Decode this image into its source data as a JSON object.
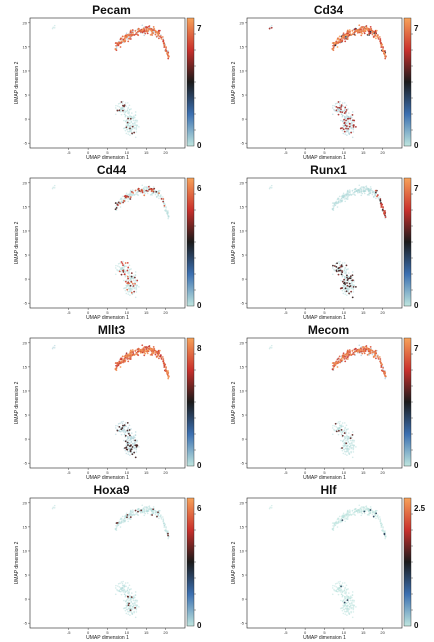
{
  "colors": {
    "low": "#bfe6df",
    "mid_blue": "#3b6fb0",
    "dark": "#1a1a1a",
    "red": "#c9302c",
    "high": "#f7a25a"
  },
  "chart_data": [
    {
      "type": "scatter",
      "title": "Pecam",
      "xlabel": "UMAP dimension 1",
      "ylabel": "UMAP dimension 2",
      "xticks": [
        "-5",
        "0",
        "5",
        "10",
        "15",
        "20"
      ],
      "yticks": [
        "-5",
        "0",
        "5",
        "10",
        "15",
        "20"
      ],
      "colorbar": {
        "min_label": "0",
        "max_label": "7",
        "max_value": 7
      },
      "expression": "upper_high"
    },
    {
      "type": "scatter",
      "title": "Cd34",
      "xlabel": "UMAP dimension 1",
      "ylabel": "UMAP dimension 2",
      "xticks": [
        "-5",
        "0",
        "5",
        "10",
        "15",
        "20"
      ],
      "yticks": [
        "-5",
        "0",
        "5",
        "10",
        "15",
        "20"
      ],
      "colorbar": {
        "min_label": "0",
        "max_label": "7",
        "max_value": 7
      },
      "expression": "upper_very_high"
    },
    {
      "type": "scatter",
      "title": "Cd44",
      "xlabel": "UMAP dimension 1",
      "ylabel": "UMAP dimension 2",
      "xticks": [
        "-5",
        "0",
        "5",
        "10",
        "15",
        "20"
      ],
      "yticks": [
        "-5",
        "0",
        "5",
        "10",
        "15",
        "20"
      ],
      "colorbar": {
        "min_label": "0",
        "max_label": "6",
        "max_value": 6
      },
      "expression": "sparse_mixed"
    },
    {
      "type": "scatter",
      "title": "Runx1",
      "xlabel": "UMAP dimension 1",
      "ylabel": "UMAP dimension 2",
      "xticks": [
        "-5",
        "0",
        "5",
        "10",
        "15",
        "20"
      ],
      "yticks": [
        "-5",
        "0",
        "5",
        "10",
        "15",
        "20"
      ],
      "colorbar": {
        "min_label": "0",
        "max_label": "7",
        "max_value": 7
      },
      "expression": "lower_and_tip"
    },
    {
      "type": "scatter",
      "title": "Mllt3",
      "xlabel": "UMAP dimension 1",
      "ylabel": "UMAP dimension 2",
      "xticks": [
        "-5",
        "0",
        "5",
        "10",
        "15",
        "20"
      ],
      "yticks": [
        "-5",
        "0",
        "5",
        "10",
        "15",
        "20"
      ],
      "colorbar": {
        "min_label": "0",
        "max_label": "8",
        "max_value": 8
      },
      "expression": "upper_high_lower_some"
    },
    {
      "type": "scatter",
      "title": "Mecom",
      "xlabel": "UMAP dimension 1",
      "ylabel": "UMAP dimension 2",
      "xticks": [
        "-5",
        "0",
        "5",
        "10",
        "15",
        "20"
      ],
      "yticks": [
        "-5",
        "0",
        "5",
        "10",
        "15",
        "20"
      ],
      "colorbar": {
        "min_label": "0",
        "max_label": "7",
        "max_value": 7
      },
      "expression": "upper_high"
    },
    {
      "type": "scatter",
      "title": "Hoxa9",
      "xlabel": "UMAP dimension 1",
      "ylabel": "UMAP dimension 2",
      "xticks": [
        "-5",
        "0",
        "5",
        "10",
        "15",
        "20"
      ],
      "yticks": [
        "-5",
        "0",
        "5",
        "10",
        "15",
        "20"
      ],
      "colorbar": {
        "min_label": "0",
        "max_label": "6",
        "max_value": 6
      },
      "expression": "mostly_low"
    },
    {
      "type": "scatter",
      "title": "Hlf",
      "xlabel": "UMAP dimension 1",
      "ylabel": "UMAP dimension 2",
      "xticks": [
        "-5",
        "0",
        "5",
        "10",
        "15",
        "20"
      ],
      "yticks": [
        "-5",
        "0",
        "5",
        "10",
        "15",
        "20"
      ],
      "colorbar": {
        "min_label": "0",
        "max_label": "2.5",
        "max_value": 2.5
      },
      "expression": "all_low"
    }
  ]
}
